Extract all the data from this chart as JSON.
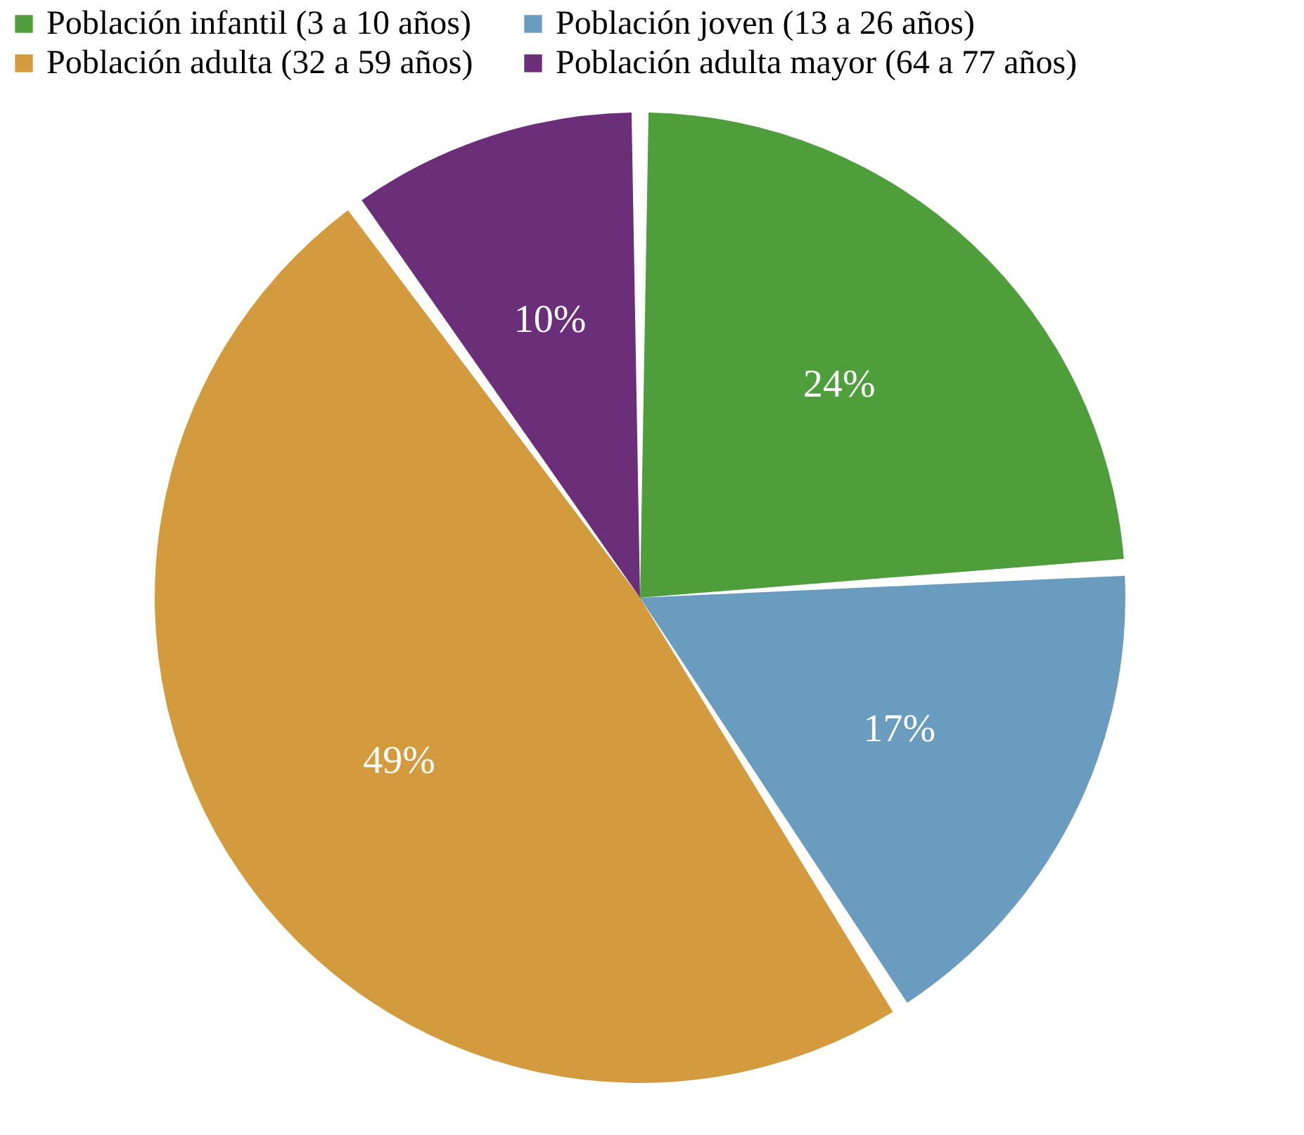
{
  "chart_data": {
    "type": "pie",
    "categories": [
      "Población infantil (3 a 10 años)",
      "Población joven (13 a 26 años)",
      "Población adulta (32 a 59 años)",
      "Población adulta mayor (64 a 77 años)"
    ],
    "values": [
      24,
      17,
      49,
      10
    ],
    "colors": [
      "#4e9e3c",
      "#6a9cc0",
      "#d39a3e",
      "#6b2e78"
    ],
    "value_labels": [
      "24%",
      "17%",
      "49%",
      "10%"
    ],
    "legend": "top"
  }
}
